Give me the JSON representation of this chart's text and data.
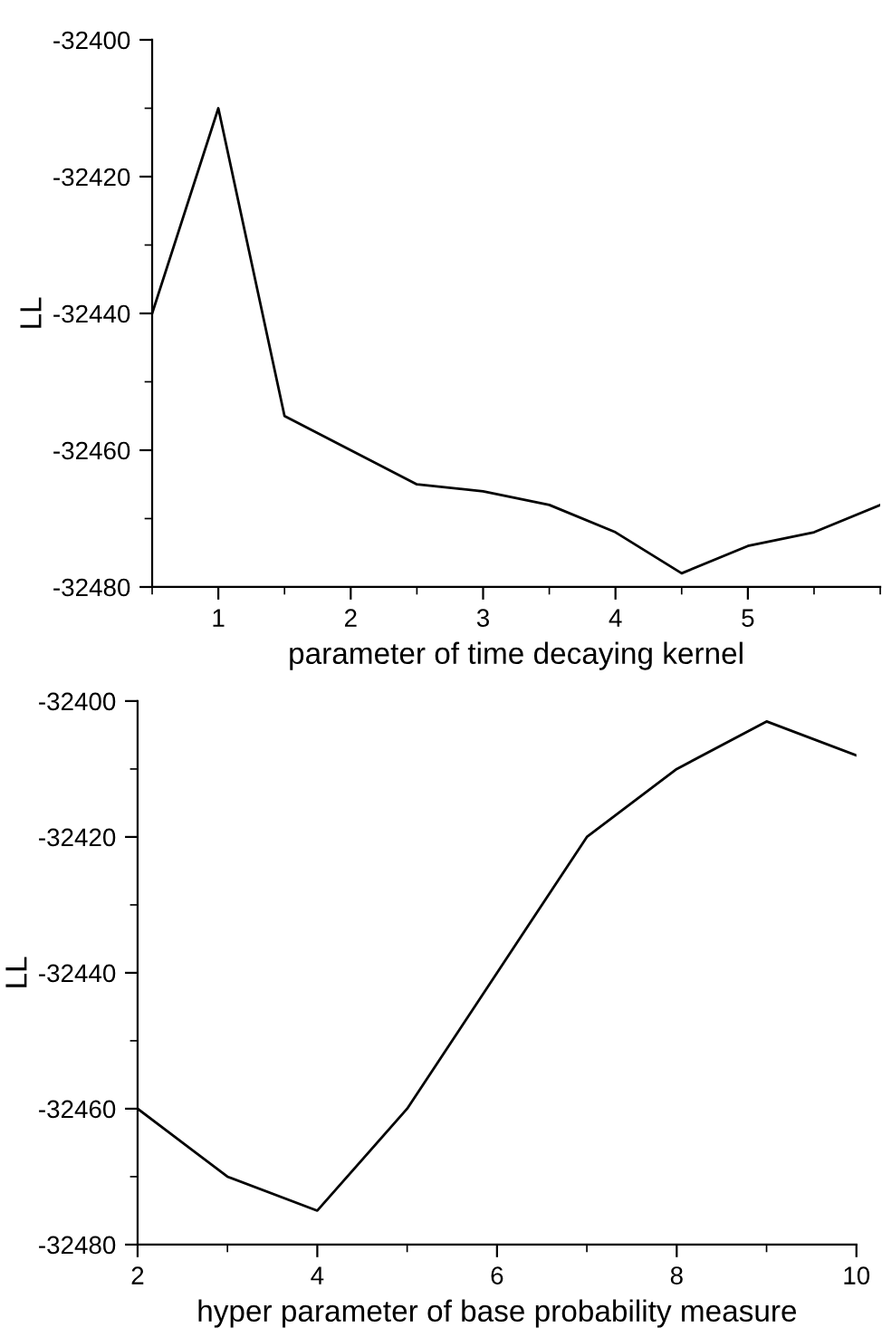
{
  "chart_data": [
    {
      "type": "line",
      "xlabel": "parameter of time decaying kernel",
      "ylabel": "LL",
      "x": [
        0.5,
        1,
        1.5,
        2,
        2.5,
        3,
        3.5,
        4,
        4.5,
        5,
        5.5,
        6
      ],
      "series": [
        {
          "color": "#000000",
          "values": [
            -32440,
            -32410,
            -32455,
            -32460,
            -32465,
            -32466,
            -32468,
            -32472,
            -32478,
            -32474,
            -32472,
            -32468
          ]
        }
      ],
      "xlim": [
        0.5,
        6
      ],
      "xticks": [
        1,
        2,
        3,
        4,
        5
      ],
      "ylim": [
        -32480,
        -32400
      ],
      "yticks": [
        -32480,
        -32460,
        -32440,
        -32420,
        -32400
      ],
      "grid": false
    },
    {
      "type": "line",
      "xlabel": "hyper parameter of base probability measure",
      "ylabel": "LL",
      "x": [
        2,
        3,
        4,
        5,
        6,
        7,
        8,
        9,
        10
      ],
      "series": [
        {
          "color": "#000000",
          "values": [
            -32460,
            -32470,
            -32475,
            -32460,
            -32440,
            -32420,
            -32410,
            -32403,
            -32408
          ]
        }
      ],
      "xlim": [
        2,
        10
      ],
      "xticks": [
        2,
        4,
        6,
        8,
        10
      ],
      "ylim": [
        -32480,
        -32400
      ],
      "yticks": [
        -32480,
        -32460,
        -32440,
        -32420,
        -32400
      ],
      "grid": false
    }
  ]
}
